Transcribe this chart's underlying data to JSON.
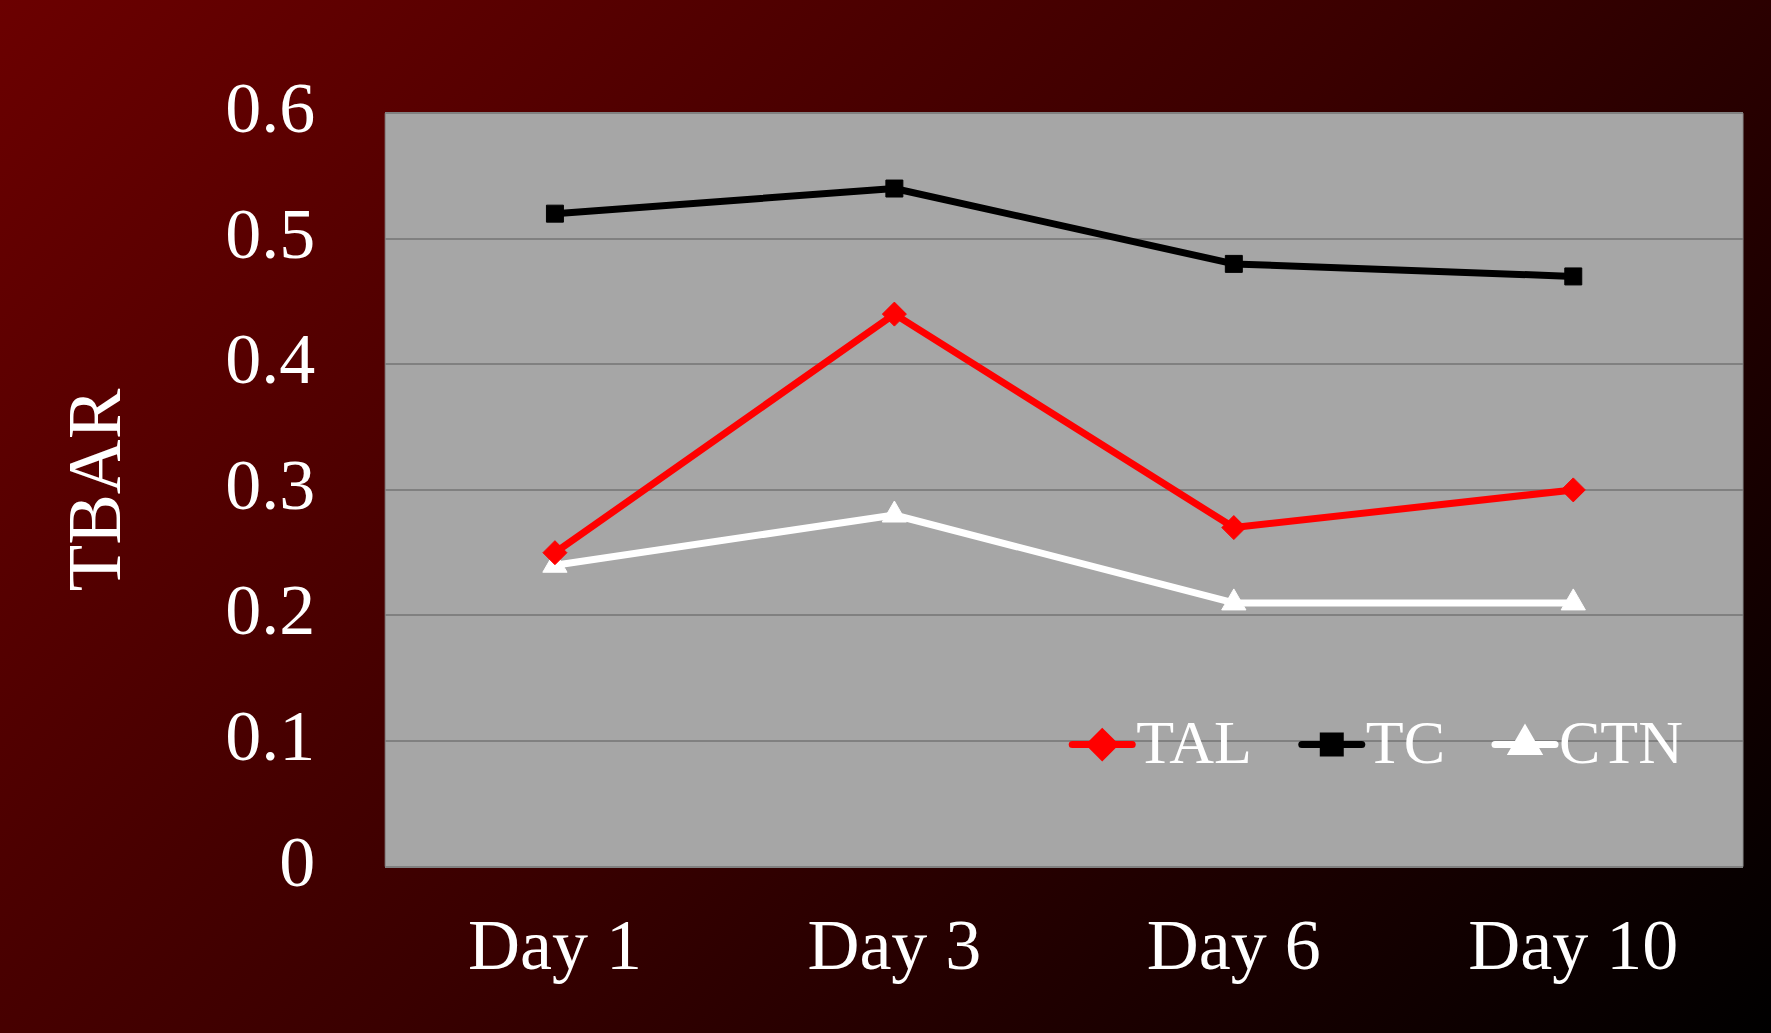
{
  "chart_data": {
    "type": "line",
    "ylabel": "TBAR",
    "categories": [
      "Day 1",
      "Day 3",
      "Day 6",
      "Day 10"
    ],
    "series": [
      {
        "name": "TAL",
        "color": "#ff0000",
        "values": [
          0.25,
          0.44,
          0.27,
          0.3
        ],
        "marker": "diamond"
      },
      {
        "name": "TC",
        "color": "#000000",
        "values": [
          0.52,
          0.54,
          0.48,
          0.47
        ],
        "marker": "square"
      },
      {
        "name": "CTN",
        "color": "#ffffff",
        "values": [
          0.24,
          0.28,
          0.21,
          0.21
        ],
        "marker": "triangle"
      }
    ],
    "ylim": [
      0,
      0.6
    ],
    "yticks": [
      0,
      0.1,
      0.2,
      0.3,
      0.4,
      0.5,
      0.6
    ],
    "grid": "y",
    "legend": "bottom right",
    "line_style": "solid"
  }
}
